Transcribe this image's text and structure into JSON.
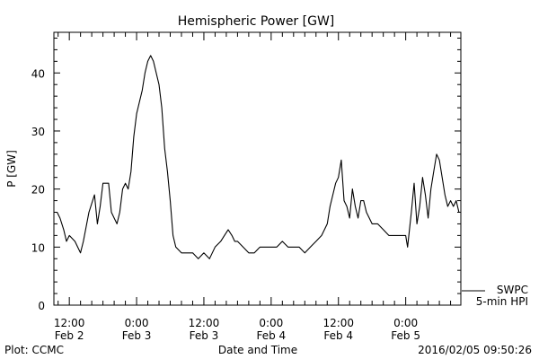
{
  "chart_data": {
    "type": "line",
    "title": "Hemispheric Power [GW]",
    "ylabel": "P [GW]",
    "xlabel": "Date and Time",
    "ylim": [
      0,
      47
    ],
    "yticks": [
      0,
      10,
      20,
      30,
      40
    ],
    "xlim": [
      "2016-02-02 09:15",
      "2016-02-05 09:50"
    ],
    "xticks": [
      {
        "time": "2016-02-02 12:00",
        "line1": "12:00",
        "line2": "Feb 2"
      },
      {
        "time": "2016-02-03 00:00",
        "line1": "0:00",
        "line2": "Feb 3"
      },
      {
        "time": "2016-02-03 12:00",
        "line1": "12:00",
        "line2": "Feb 3"
      },
      {
        "time": "2016-02-04 00:00",
        "line1": "0:00",
        "line2": "Feb 4"
      },
      {
        "time": "2016-02-04 12:00",
        "line1": "12:00",
        "line2": "Feb 4"
      },
      {
        "time": "2016-02-05 00:00",
        "line1": "0:00",
        "line2": "Feb 5"
      }
    ],
    "grid": false,
    "legend_position": "right-bottom",
    "series": [
      {
        "name": "SWPC 5-min HPI",
        "color": "#000000",
        "points": [
          [
            "2016-02-02 09:15",
            16
          ],
          [
            "2016-02-02 09:50",
            16
          ],
          [
            "2016-02-02 10:20",
            15
          ],
          [
            "2016-02-02 11:00",
            13
          ],
          [
            "2016-02-02 11:30",
            11
          ],
          [
            "2016-02-02 12:00",
            12
          ],
          [
            "2016-02-02 13:00",
            11
          ],
          [
            "2016-02-02 14:00",
            9
          ],
          [
            "2016-02-02 14:30",
            11
          ],
          [
            "2016-02-02 15:30",
            16
          ],
          [
            "2016-02-02 16:30",
            19
          ],
          [
            "2016-02-02 17:00",
            14
          ],
          [
            "2016-02-02 17:30",
            17
          ],
          [
            "2016-02-02 18:00",
            21
          ],
          [
            "2016-02-02 19:00",
            21
          ],
          [
            "2016-02-02 19:30",
            16
          ],
          [
            "2016-02-02 20:00",
            15
          ],
          [
            "2016-02-02 20:30",
            14
          ],
          [
            "2016-02-02 21:00",
            16
          ],
          [
            "2016-02-02 21:30",
            20
          ],
          [
            "2016-02-02 22:00",
            21
          ],
          [
            "2016-02-02 22:30",
            20
          ],
          [
            "2016-02-02 23:00",
            23
          ],
          [
            "2016-02-02 23:30",
            29
          ],
          [
            "2016-02-03 00:00",
            33
          ],
          [
            "2016-02-03 00:30",
            35
          ],
          [
            "2016-02-03 01:00",
            37
          ],
          [
            "2016-02-03 01:30",
            40
          ],
          [
            "2016-02-03 02:00",
            42
          ],
          [
            "2016-02-03 02:30",
            43
          ],
          [
            "2016-02-03 03:00",
            42
          ],
          [
            "2016-02-03 03:30",
            40
          ],
          [
            "2016-02-03 04:00",
            38
          ],
          [
            "2016-02-03 04:30",
            34
          ],
          [
            "2016-02-03 05:00",
            27
          ],
          [
            "2016-02-03 05:30",
            23
          ],
          [
            "2016-02-03 06:00",
            18
          ],
          [
            "2016-02-03 06:30",
            12
          ],
          [
            "2016-02-03 07:00",
            10
          ],
          [
            "2016-02-03 08:00",
            9
          ],
          [
            "2016-02-03 10:00",
            9
          ],
          [
            "2016-02-03 11:00",
            8
          ],
          [
            "2016-02-03 12:00",
            9
          ],
          [
            "2016-02-03 13:00",
            8
          ],
          [
            "2016-02-03 14:00",
            10
          ],
          [
            "2016-02-03 15:00",
            11
          ],
          [
            "2016-02-03 15:40",
            12
          ],
          [
            "2016-02-03 16:20",
            13
          ],
          [
            "2016-02-03 17:00",
            12
          ],
          [
            "2016-02-03 17:30",
            11
          ],
          [
            "2016-02-03 18:00",
            11
          ],
          [
            "2016-02-03 19:00",
            10
          ],
          [
            "2016-02-03 20:00",
            9
          ],
          [
            "2016-02-03 21:00",
            9
          ],
          [
            "2016-02-03 22:00",
            10
          ],
          [
            "2016-02-03 23:00",
            10
          ],
          [
            "2016-02-04 00:00",
            10
          ],
          [
            "2016-02-04 01:00",
            10
          ],
          [
            "2016-02-04 02:00",
            11
          ],
          [
            "2016-02-04 03:00",
            10
          ],
          [
            "2016-02-04 04:00",
            10
          ],
          [
            "2016-02-04 05:00",
            10
          ],
          [
            "2016-02-04 06:00",
            9
          ],
          [
            "2016-02-04 07:00",
            10
          ],
          [
            "2016-02-04 08:00",
            11
          ],
          [
            "2016-02-04 09:00",
            12
          ],
          [
            "2016-02-04 10:00",
            14
          ],
          [
            "2016-02-04 10:30",
            17
          ],
          [
            "2016-02-04 11:00",
            19
          ],
          [
            "2016-02-04 11:30",
            21
          ],
          [
            "2016-02-04 12:00",
            22
          ],
          [
            "2016-02-04 12:30",
            25
          ],
          [
            "2016-02-04 13:00",
            18
          ],
          [
            "2016-02-04 13:30",
            17
          ],
          [
            "2016-02-04 14:00",
            15
          ],
          [
            "2016-02-04 14:30",
            20
          ],
          [
            "2016-02-04 15:00",
            17
          ],
          [
            "2016-02-04 15:30",
            15
          ],
          [
            "2016-02-04 16:00",
            18
          ],
          [
            "2016-02-04 16:30",
            18
          ],
          [
            "2016-02-04 17:00",
            16
          ],
          [
            "2016-02-04 17:30",
            15
          ],
          [
            "2016-02-04 18:00",
            14
          ],
          [
            "2016-02-04 19:00",
            14
          ],
          [
            "2016-02-04 20:00",
            13
          ],
          [
            "2016-02-04 21:00",
            12
          ],
          [
            "2016-02-04 22:00",
            12
          ],
          [
            "2016-02-04 23:00",
            12
          ],
          [
            "2016-02-05 00:00",
            12
          ],
          [
            "2016-02-05 00:20",
            10
          ],
          [
            "2016-02-05 00:40",
            13
          ],
          [
            "2016-02-05 01:00",
            16
          ],
          [
            "2016-02-05 01:30",
            21
          ],
          [
            "2016-02-05 02:00",
            14
          ],
          [
            "2016-02-05 02:30",
            17
          ],
          [
            "2016-02-05 03:00",
            22
          ],
          [
            "2016-02-05 03:30",
            19
          ],
          [
            "2016-02-05 04:00",
            15
          ],
          [
            "2016-02-05 04:30",
            20
          ],
          [
            "2016-02-05 05:00",
            23
          ],
          [
            "2016-02-05 05:30",
            26
          ],
          [
            "2016-02-05 06:00",
            25
          ],
          [
            "2016-02-05 06:30",
            22
          ],
          [
            "2016-02-05 07:00",
            19
          ],
          [
            "2016-02-05 07:30",
            17
          ],
          [
            "2016-02-05 08:00",
            18
          ],
          [
            "2016-02-05 08:30",
            17
          ],
          [
            "2016-02-05 09:00",
            18
          ],
          [
            "2016-02-05 09:30",
            16
          ]
        ]
      }
    ]
  },
  "legend": {
    "line1": "SWPC",
    "line2": "5-min HPI"
  },
  "footer": {
    "source": "Plot: CCMC",
    "timestamp": "2016/02/05 09:50:26"
  }
}
